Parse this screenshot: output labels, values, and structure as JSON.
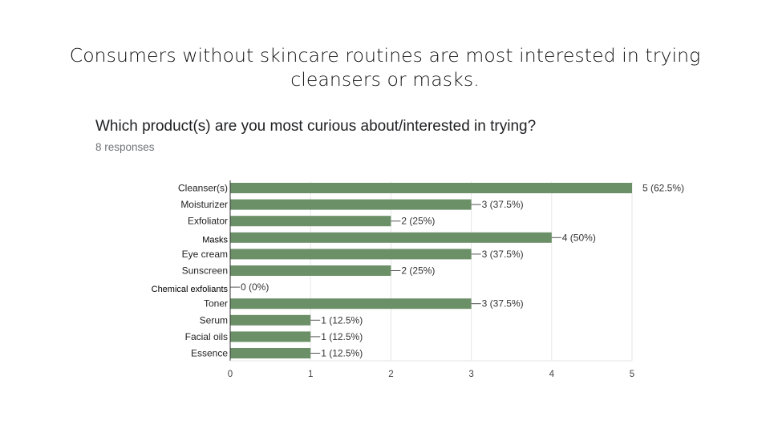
{
  "slide": {
    "title": "Consumers without skincare routines are most interested in trying cleansers or masks."
  },
  "chart_data": {
    "type": "bar",
    "orientation": "horizontal",
    "title": "Which product(s) are you most curious about/interested in trying?",
    "subtitle": "8 responses",
    "categories": [
      "Cleanser(s)",
      "Moisturizer",
      "Exfoliator",
      "Masks",
      "Eye cream",
      "Sunscreen",
      "Chemical exfoliants",
      "Toner",
      "Serum",
      "Facial oils",
      "Essence"
    ],
    "values": [
      5,
      3,
      2,
      4,
      3,
      2,
      0,
      3,
      1,
      1,
      1
    ],
    "data_labels": [
      "5 (62.5%)",
      "3 (37.5%)",
      "2 (25%)",
      "4 (50%)",
      "3 (37.5%)",
      "2 (25%)",
      "0 (0%)",
      "3 (37.5%)",
      "1 (12.5%)",
      "1 (12.5%)",
      "1 (12.5%)"
    ],
    "xticks": [
      "0",
      "1",
      "2",
      "3",
      "4",
      "5"
    ],
    "xlim": [
      0,
      5
    ],
    "grid": true,
    "bar_color": "#6b8f67"
  }
}
